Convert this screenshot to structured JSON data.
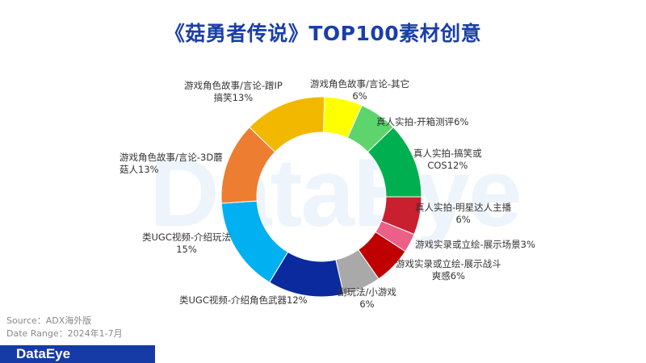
{
  "chart_data": {
    "type": "pie",
    "donut": true,
    "title": "《菇勇者传说》TOP100素材创意",
    "slices": [
      {
        "label": "真人实拍-明星达人主播",
        "value": 6,
        "color": "#c8202f"
      },
      {
        "label": "游戏实录或立绘-展示场景",
        "value": 3,
        "color": "#ec5f86"
      },
      {
        "label": "游戏实录或立绘-展示战斗爽感",
        "value": 6,
        "color": "#c00000"
      },
      {
        "label": "副玩法/小游戏",
        "value": 6,
        "color": "#a9a9a9"
      },
      {
        "label": "类UGC视频-介绍角色武器",
        "value": 12,
        "color": "#0a2a9e"
      },
      {
        "label": "类UGC视频-介绍玩法",
        "value": 15,
        "color": "#00b0f0"
      },
      {
        "label": "游戏角色故事/言论-3D蘑菇人",
        "value": 13,
        "color": "#ed7d31"
      },
      {
        "label": "游戏角色故事/言论-蹭IP搞笑",
        "value": 13,
        "color": "#f2b800"
      },
      {
        "label": "游戏角色故事/言论-其它",
        "value": 6,
        "color": "#ffff00"
      },
      {
        "label": "真人实拍-开箱测评",
        "value": 6,
        "color": "#5ed46c"
      },
      {
        "label": "真人实拍-搞笑或COS",
        "value": 12,
        "color": "#00b050"
      }
    ],
    "labels": {
      "s0": [
        "真人实拍-明星达人主播",
        "6%"
      ],
      "s1": [
        "游戏实录或立绘-展示场景3%"
      ],
      "s2": [
        "游戏实录或立绘-展示战斗",
        "爽感6%"
      ],
      "s3": [
        "副玩法/小游戏",
        "6%"
      ],
      "s4": [
        "类UGC视频-介绍角色武器12%"
      ],
      "s5": [
        "类UGC视频-介绍玩法",
        "15%"
      ],
      "s6": [
        "游戏角色故事/言论-3D蘑",
        "菇人13%"
      ],
      "s7": [
        "游戏角色故事/言论-蹭IP",
        "搞笑13%"
      ],
      "s8": [
        "游戏角色故事/言论-其它",
        "6%"
      ],
      "s9": [
        "真人实拍-开箱测评6%"
      ],
      "s10": [
        "真人实拍-搞笑或",
        "COS12%"
      ]
    }
  },
  "footer": {
    "source": "Source：ADX海外版",
    "date_range": "Date Range：2024年1-7月",
    "brand": "DataEye",
    "watermark": "DataEye"
  }
}
